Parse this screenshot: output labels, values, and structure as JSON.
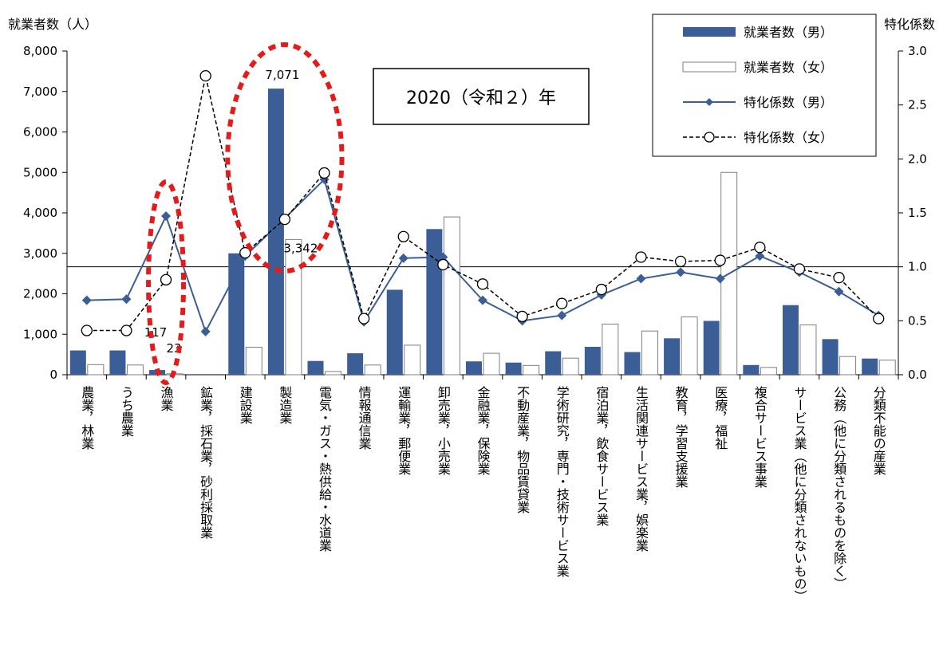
{
  "chart_data": {
    "type": "bar",
    "title": "",
    "annotation_box": "2020（令和２）年",
    "ylabel_left": "就業者数（人）",
    "ylabel_right": "特化係数",
    "ylim_left": [
      0,
      8000
    ],
    "ylim_right": [
      0,
      3.0
    ],
    "yticks_left": [
      "0",
      "1,000",
      "2,000",
      "3,000",
      "4,000",
      "5,000",
      "6,000",
      "7,000",
      "8,000"
    ],
    "yticks_right": [
      "0.0",
      "0.5",
      "1.0",
      "1.5",
      "2.0",
      "2.5",
      "3.0"
    ],
    "reference_line": 1.0,
    "categories": [
      "農業，林業",
      "うち農業",
      "漁業",
      "鉱業，採石業，砂利採取業",
      "建設業",
      "製造業",
      "電気・ガス・熱供給・水道業",
      "情報通信業",
      "運輸業，郵便業",
      "卸売業，小売業",
      "金融業，保険業",
      "不動産業，物品賃貸業",
      "学術研究，専門・技術サービス業",
      "宿泊業，飲食サービス業",
      "生活関連サービス業，娯楽業",
      "教育，学習支援業",
      "医療，福祉",
      "複合サービス事業",
      "サービス業（他に分類されないもの）",
      "公務（他に分類されるものを除く）",
      "分類不能の産業"
    ],
    "series": [
      {
        "name": "就業者数（男）",
        "kind": "bar",
        "axis": "left",
        "color": "#3b5e96",
        "values": [
          600,
          600,
          117,
          0,
          3000,
          7071,
          340,
          530,
          2100,
          3600,
          330,
          300,
          580,
          690,
          560,
          900,
          1330,
          240,
          1720,
          880,
          400
        ]
      },
      {
        "name": "就業者数（女）",
        "kind": "bar",
        "axis": "left",
        "color": "#ffffff",
        "values": [
          250,
          240,
          23,
          0,
          680,
          3342,
          80,
          240,
          730,
          3900,
          530,
          230,
          410,
          1250,
          1080,
          1430,
          5000,
          180,
          1230,
          450,
          360
        ]
      },
      {
        "name": "特化係数（男）",
        "kind": "line",
        "axis": "right",
        "color": "#3b5e96",
        "values": [
          0.69,
          0.7,
          1.47,
          0.4,
          1.1,
          1.45,
          1.81,
          0.49,
          1.08,
          1.09,
          0.69,
          0.5,
          0.55,
          0.74,
          0.89,
          0.95,
          0.89,
          1.1,
          0.95,
          0.77,
          0.55
        ]
      },
      {
        "name": "特化係数（女）",
        "kind": "line",
        "axis": "right",
        "color": "#000000",
        "values": [
          0.41,
          0.41,
          0.88,
          2.77,
          1.13,
          1.44,
          1.87,
          0.52,
          1.28,
          1.02,
          0.84,
          0.54,
          0.66,
          0.79,
          1.09,
          1.05,
          1.06,
          1.18,
          0.98,
          0.9,
          0.52
        ]
      }
    ],
    "data_labels": [
      {
        "text": "7,071",
        "category": 5,
        "series": "就業者数（男）"
      },
      {
        "text": "3,342",
        "category": 5,
        "series": "就業者数（女）"
      },
      {
        "text": "117",
        "category": 2,
        "series": "就業者数（男）"
      },
      {
        "text": "23",
        "category": 2,
        "series": "就業者数（女）"
      }
    ],
    "highlight_ellipses": [
      {
        "categories": [
          2
        ],
        "color": "#e31b1b"
      },
      {
        "categories": [
          4,
          5,
          6
        ],
        "color": "#e31b1b"
      }
    ],
    "legend": {
      "position": "top-right",
      "entries": [
        "就業者数（男）",
        "就業者数（女）",
        "特化係数（男）",
        "特化係数（女）"
      ]
    }
  }
}
